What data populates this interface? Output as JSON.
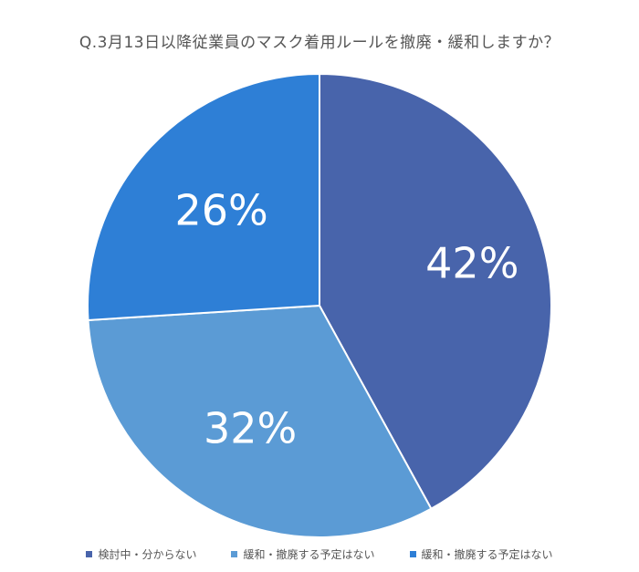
{
  "chart_data": {
    "type": "pie",
    "title": "Q.3月13日以降従業員のマスク着用ルールを撤廃・緩和しますか？",
    "categories": [
      "検討中・分からない",
      "緩和・撤廃する予定はない",
      "緩和・撤廃する予定はない"
    ],
    "values": [
      42,
      32,
      26
    ],
    "data_labels": [
      "42%",
      "32%",
      "26%"
    ],
    "colors": [
      "#4864ab",
      "#5b9bd5",
      "#2e7fd6"
    ],
    "legend_position": "bottom",
    "start_angle_deg": 0,
    "direction": "clockwise"
  }
}
